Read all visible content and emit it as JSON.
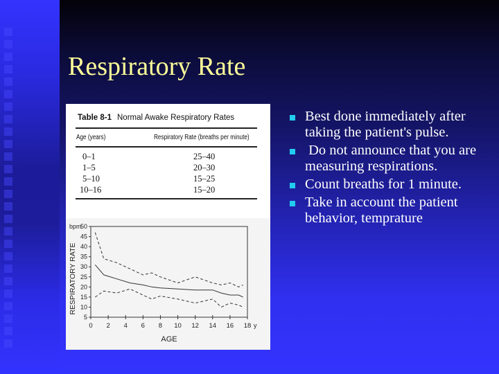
{
  "slide": {
    "title": "Respiratory Rate",
    "title_color": "#ffff99",
    "bullet_color": "#22ccee",
    "bullets": [
      "Best done immediately after taking the patient's pulse.",
      " Do not announce that you are measuring respirations.",
      "Count breaths for 1 minute.",
      "Take in account the patient behavior, temprature"
    ]
  },
  "table": {
    "label": "Table 8-1",
    "caption": "Normal Awake Respiratory Rates",
    "headers": [
      "Age (years)",
      "Respiratory Rate (breaths per minute)"
    ],
    "rows": [
      [
        "0–1",
        "25–40"
      ],
      [
        "1–5",
        "20–30"
      ],
      [
        "5–10",
        "15–25"
      ],
      [
        "10–16",
        "15–20"
      ]
    ]
  },
  "chart_data": {
    "type": "line",
    "title": "",
    "xlabel": "AGE",
    "ylabel": "RESPIRATORY RATE",
    "y_unit": "bpm",
    "x_unit": "y",
    "xlim": [
      0,
      18
    ],
    "ylim": [
      5,
      50
    ],
    "x_ticks": [
      0,
      2,
      4,
      6,
      8,
      10,
      12,
      14,
      16,
      18
    ],
    "y_ticks": [
      5,
      10,
      15,
      20,
      25,
      30,
      35,
      40,
      45,
      50
    ],
    "grid": false,
    "x": [
      0.5,
      1.5,
      3,
      4.5,
      6,
      7,
      8,
      10,
      12,
      14,
      15,
      16,
      17,
      17.5
    ],
    "series": [
      {
        "name": "upper",
        "style": "dashed",
        "values": [
          47,
          34,
          32,
          29,
          26,
          27,
          25,
          22,
          25,
          22,
          21,
          22,
          20,
          21
        ]
      },
      {
        "name": "mean",
        "style": "solid",
        "values": [
          31,
          26,
          24,
          22,
          21,
          20,
          19.5,
          19,
          18.5,
          18.5,
          17,
          16,
          16,
          15
        ]
      },
      {
        "name": "lower",
        "style": "dashed",
        "values": [
          15,
          18,
          17,
          19,
          16,
          14,
          15.5,
          14,
          12,
          14,
          10,
          12,
          11,
          10
        ]
      }
    ]
  }
}
